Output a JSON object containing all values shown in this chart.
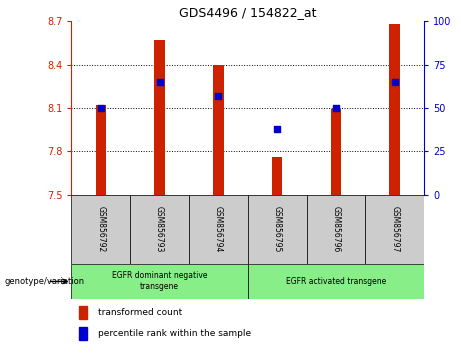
{
  "title": "GDS4496 / 154822_at",
  "samples": [
    "GSM856792",
    "GSM856793",
    "GSM856794",
    "GSM856795",
    "GSM856796",
    "GSM856797"
  ],
  "bar_values": [
    8.12,
    8.57,
    8.4,
    7.76,
    8.095,
    8.68
  ],
  "percentile_values": [
    50,
    65,
    57,
    38,
    50,
    65
  ],
  "ylim_left": [
    7.5,
    8.7
  ],
  "ylim_right": [
    0,
    100
  ],
  "yticks_left": [
    7.5,
    7.8,
    8.1,
    8.4,
    8.7
  ],
  "yticks_right": [
    0,
    25,
    50,
    75,
    100
  ],
  "bar_color": "#cc2200",
  "dot_color": "#0000cc",
  "bar_bottom": 7.5,
  "group1_label": "EGFR dominant negative\ntransgene",
  "group2_label": "EGFR activated transgene",
  "group1_indices": [
    0,
    1,
    2
  ],
  "group2_indices": [
    3,
    4,
    5
  ],
  "legend_bar_label": "transformed count",
  "legend_dot_label": "percentile rank within the sample",
  "genotype_label": "genotype/variation",
  "group_bg_color": "#88ee88",
  "sample_bg_color": "#cccccc",
  "fig_width": 4.61,
  "fig_height": 3.54,
  "left_axis_color": "#cc2200",
  "right_axis_color": "#0000cc",
  "bar_width": 0.18
}
